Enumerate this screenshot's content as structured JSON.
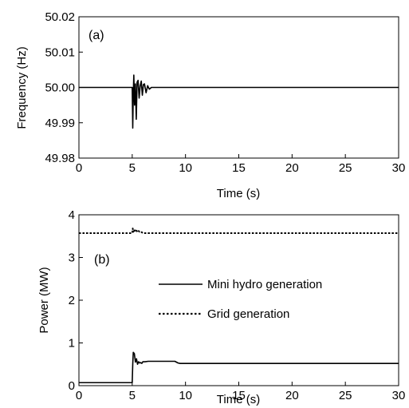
{
  "chart_data": [
    {
      "type": "line",
      "panel_label": "(a)",
      "xlabel": "Time (s)",
      "ylabel": "Frequency (Hz)",
      "xlim": [
        0,
        30
      ],
      "ylim": [
        49.98,
        50.02
      ],
      "xticks": [
        "0",
        "5",
        "10",
        "15",
        "20",
        "25",
        "30"
      ],
      "yticks": [
        "49.98",
        "49.99",
        "50.00",
        "50.01",
        "50.02"
      ],
      "grid": false,
      "series": [
        {
          "x": [
            0,
            5.0,
            5.05,
            5.1,
            5.15,
            5.22,
            5.3,
            5.38,
            5.46,
            5.55,
            5.65,
            5.75,
            5.85,
            5.95,
            6.05,
            6.15,
            6.3,
            6.45,
            6.6,
            6.8,
            30
          ],
          "y": [
            50.0,
            50.0,
            49.9885,
            49.998,
            50.0035,
            49.995,
            50.001,
            49.991,
            50.0015,
            50.002,
            49.997,
            50.0005,
            50.0018,
            49.9978,
            50.0008,
            50.001,
            49.9985,
            50.0005,
            49.9995,
            50.0,
            50.0
          ]
        }
      ]
    },
    {
      "type": "line",
      "panel_label": "(b)",
      "xlabel": "Time (s)",
      "ylabel": "Power (MW)",
      "xlim": [
        0,
        30
      ],
      "ylim": [
        0,
        4
      ],
      "xticks": [
        "0",
        "5",
        "10",
        "15",
        "20",
        "25",
        "30"
      ],
      "yticks": [
        "0",
        "1",
        "2",
        "3",
        "4"
      ],
      "grid": false,
      "legend_position": "center",
      "series": [
        {
          "name": "Mini hydro generation",
          "style": "solid",
          "x": [
            0,
            5.0,
            5.05,
            5.1,
            5.2,
            5.3,
            5.4,
            5.5,
            5.6,
            5.7,
            5.8,
            5.9,
            6.0,
            6.2,
            6.5,
            7.0,
            8.0,
            9.0,
            9.3,
            9.5,
            10.0,
            30
          ],
          "y": [
            0.07,
            0.07,
            0.5,
            0.78,
            0.75,
            0.55,
            0.63,
            0.5,
            0.56,
            0.53,
            0.54,
            0.52,
            0.56,
            0.56,
            0.57,
            0.57,
            0.57,
            0.57,
            0.53,
            0.52,
            0.52,
            0.52
          ]
        },
        {
          "name": "Grid generation",
          "style": "dotted",
          "x": [
            0,
            5.0,
            5.05,
            5.1,
            5.2,
            5.3,
            5.4,
            5.5,
            5.6,
            5.7,
            5.8,
            5.9,
            6.0,
            6.2,
            30
          ],
          "y": [
            3.57,
            3.57,
            3.68,
            3.6,
            3.66,
            3.6,
            3.63,
            3.59,
            3.62,
            3.6,
            3.61,
            3.59,
            3.57,
            3.57,
            3.57
          ]
        }
      ]
    }
  ]
}
